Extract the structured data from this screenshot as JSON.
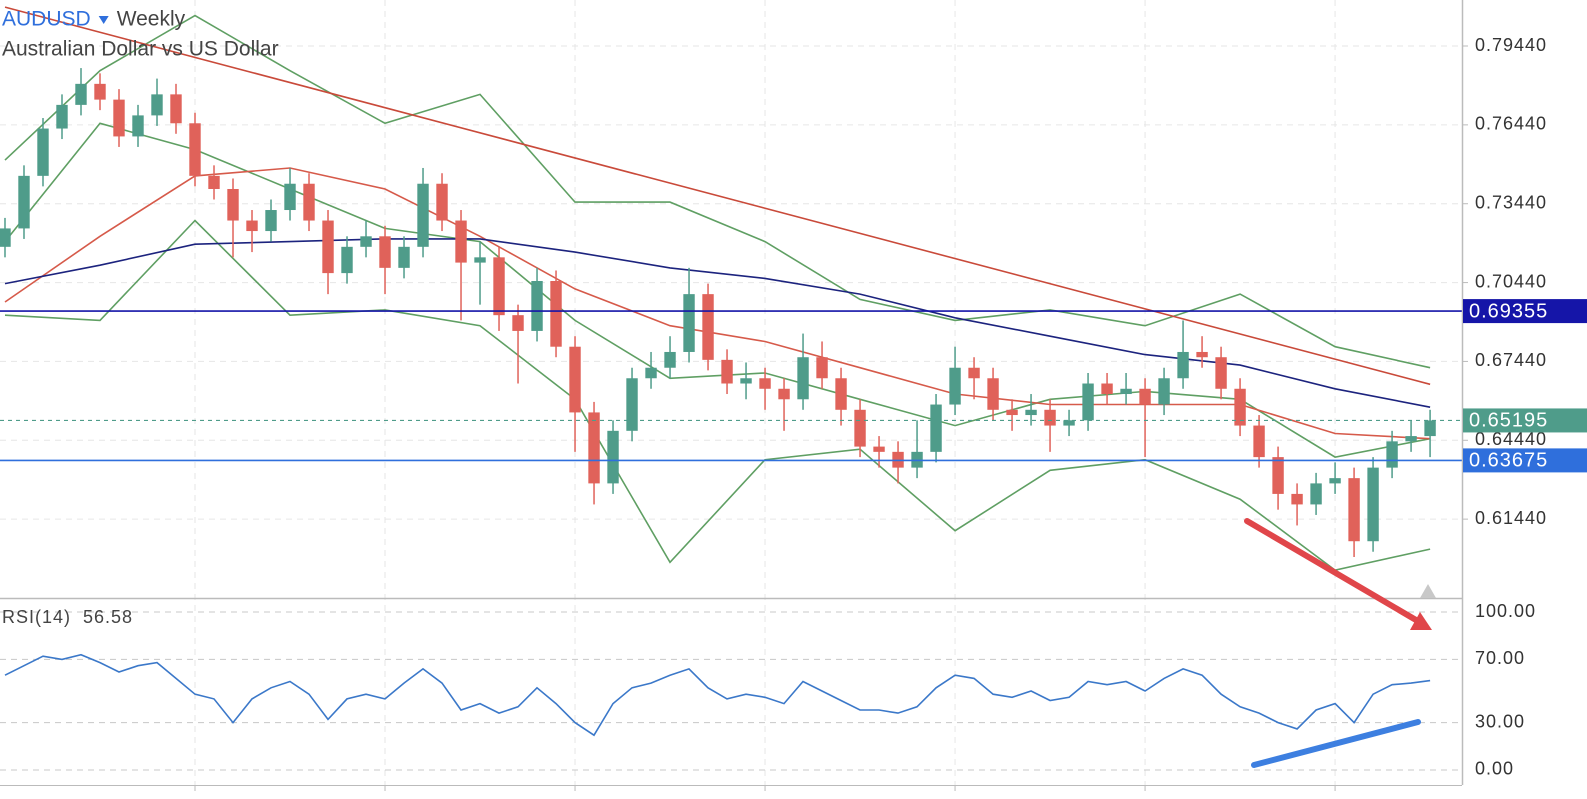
{
  "chart_data": {
    "type": "candlestick",
    "title": "AUDUSD",
    "interval": "Weekly",
    "subtitle": "Australian Dollar vs US Dollar",
    "xlim": [
      -0.263,
      76.68
    ],
    "xticks": [
      10,
      20,
      30,
      40,
      50,
      60,
      70
    ],
    "ylim": [
      0.5844,
      0.8119
    ],
    "yticks": [
      {
        "value": 0.7944,
        "label": "0.79440"
      },
      {
        "value": 0.7644,
        "label": "0.76440"
      },
      {
        "value": 0.7344,
        "label": "0.73440"
      },
      {
        "value": 0.7044,
        "label": "0.70440"
      },
      {
        "value": 0.6744,
        "label": "0.67440"
      },
      {
        "value": 0.6444,
        "label": "0.64440"
      },
      {
        "value": 0.6144,
        "label": "0.61440"
      }
    ],
    "grid": true,
    "up_color": "#4f9c8a",
    "down_color": "#e0625a",
    "candles": [
      [
        0.718,
        0.729,
        0.714,
        0.725
      ],
      [
        0.725,
        0.749,
        0.721,
        0.745
      ],
      [
        0.745,
        0.767,
        0.741,
        0.763
      ],
      [
        0.763,
        0.776,
        0.759,
        0.772
      ],
      [
        0.772,
        0.786,
        0.768,
        0.78
      ],
      [
        0.78,
        0.784,
        0.77,
        0.774
      ],
      [
        0.774,
        0.778,
        0.756,
        0.76
      ],
      [
        0.76,
        0.772,
        0.756,
        0.768
      ],
      [
        0.768,
        0.782,
        0.764,
        0.776
      ],
      [
        0.776,
        0.78,
        0.761,
        0.765
      ],
      [
        0.765,
        0.769,
        0.741,
        0.745
      ],
      [
        0.745,
        0.749,
        0.736,
        0.74
      ],
      [
        0.74,
        0.744,
        0.714,
        0.728
      ],
      [
        0.728,
        0.732,
        0.716,
        0.724
      ],
      [
        0.724,
        0.736,
        0.72,
        0.732
      ],
      [
        0.732,
        0.748,
        0.728,
        0.742
      ],
      [
        0.742,
        0.746,
        0.724,
        0.728
      ],
      [
        0.728,
        0.732,
        0.7,
        0.708
      ],
      [
        0.708,
        0.722,
        0.704,
        0.718
      ],
      [
        0.718,
        0.728,
        0.714,
        0.722
      ],
      [
        0.722,
        0.726,
        0.7,
        0.71
      ],
      [
        0.71,
        0.722,
        0.706,
        0.718
      ],
      [
        0.718,
        0.748,
        0.714,
        0.742
      ],
      [
        0.742,
        0.746,
        0.724,
        0.728
      ],
      [
        0.728,
        0.732,
        0.69,
        0.712
      ],
      [
        0.712,
        0.72,
        0.696,
        0.714
      ],
      [
        0.714,
        0.718,
        0.686,
        0.692
      ],
      [
        0.692,
        0.696,
        0.666,
        0.686
      ],
      [
        0.686,
        0.71,
        0.682,
        0.705
      ],
      [
        0.705,
        0.709,
        0.676,
        0.68
      ],
      [
        0.68,
        0.684,
        0.64,
        0.655
      ],
      [
        0.655,
        0.659,
        0.62,
        0.628
      ],
      [
        0.628,
        0.652,
        0.624,
        0.648
      ],
      [
        0.648,
        0.672,
        0.644,
        0.668
      ],
      [
        0.668,
        0.678,
        0.664,
        0.672
      ],
      [
        0.672,
        0.684,
        0.668,
        0.678
      ],
      [
        0.678,
        0.71,
        0.674,
        0.7
      ],
      [
        0.7,
        0.704,
        0.671,
        0.675
      ],
      [
        0.675,
        0.679,
        0.662,
        0.666
      ],
      [
        0.666,
        0.674,
        0.66,
        0.668
      ],
      [
        0.668,
        0.672,
        0.656,
        0.664
      ],
      [
        0.664,
        0.668,
        0.648,
        0.66
      ],
      [
        0.66,
        0.685,
        0.656,
        0.676
      ],
      [
        0.676,
        0.682,
        0.664,
        0.668
      ],
      [
        0.668,
        0.672,
        0.65,
        0.656
      ],
      [
        0.656,
        0.66,
        0.638,
        0.642
      ],
      [
        0.642,
        0.646,
        0.634,
        0.64
      ],
      [
        0.64,
        0.644,
        0.628,
        0.634
      ],
      [
        0.634,
        0.652,
        0.63,
        0.64
      ],
      [
        0.64,
        0.662,
        0.636,
        0.658
      ],
      [
        0.658,
        0.68,
        0.654,
        0.672
      ],
      [
        0.672,
        0.676,
        0.66,
        0.668
      ],
      [
        0.668,
        0.672,
        0.652,
        0.656
      ],
      [
        0.656,
        0.66,
        0.648,
        0.654
      ],
      [
        0.654,
        0.662,
        0.65,
        0.656
      ],
      [
        0.656,
        0.66,
        0.64,
        0.65
      ],
      [
        0.65,
        0.656,
        0.646,
        0.652
      ],
      [
        0.652,
        0.67,
        0.648,
        0.666
      ],
      [
        0.666,
        0.67,
        0.658,
        0.662
      ],
      [
        0.662,
        0.67,
        0.658,
        0.664
      ],
      [
        0.664,
        0.668,
        0.638,
        0.658
      ],
      [
        0.658,
        0.672,
        0.654,
        0.668
      ],
      [
        0.668,
        0.69,
        0.664,
        0.678
      ],
      [
        0.678,
        0.684,
        0.672,
        0.676
      ],
      [
        0.676,
        0.68,
        0.66,
        0.664
      ],
      [
        0.664,
        0.668,
        0.646,
        0.65
      ],
      [
        0.65,
        0.654,
        0.634,
        0.638
      ],
      [
        0.638,
        0.642,
        0.618,
        0.624
      ],
      [
        0.624,
        0.628,
        0.612,
        0.62
      ],
      [
        0.62,
        0.632,
        0.616,
        0.628
      ],
      [
        0.628,
        0.636,
        0.624,
        0.63
      ],
      [
        0.63,
        0.634,
        0.6,
        0.606
      ],
      [
        0.606,
        0.638,
        0.602,
        0.634
      ],
      [
        0.634,
        0.648,
        0.63,
        0.644
      ],
      [
        0.644,
        0.652,
        0.64,
        0.646
      ],
      [
        0.646,
        0.656,
        0.638,
        0.65195
      ]
    ],
    "overlay_x": [
      0,
      5,
      10,
      15,
      20,
      25,
      30,
      35,
      40,
      45,
      50,
      55,
      60,
      65,
      70,
      75
    ],
    "overlays": [
      {
        "color": "#5f9f63",
        "values": [
          0.751,
          0.785,
          0.806,
          0.785,
          0.765,
          0.776,
          0.735,
          0.735,
          0.72,
          0.698,
          0.69,
          0.694,
          0.688,
          0.7,
          0.68,
          0.672
        ]
      },
      {
        "color": "#5f9f63",
        "values": [
          0.72,
          0.765,
          0.755,
          0.74,
          0.725,
          0.72,
          0.69,
          0.668,
          0.67,
          0.66,
          0.65,
          0.66,
          0.663,
          0.66,
          0.638,
          0.645
        ]
      },
      {
        "color": "#5f9f63",
        "values": [
          0.692,
          0.69,
          0.728,
          0.692,
          0.694,
          0.688,
          0.66,
          0.598,
          0.637,
          0.641,
          0.61,
          0.633,
          0.637,
          0.622,
          0.595,
          0.603
        ]
      },
      {
        "color": "#d65a4a",
        "values": [
          0.697,
          0.722,
          0.745,
          0.748,
          0.74,
          0.722,
          0.702,
          0.688,
          0.682,
          0.672,
          0.662,
          0.658,
          0.658,
          0.658,
          0.647,
          0.645
        ]
      },
      {
        "color": "#1c237e",
        "values": [
          0.704,
          0.711,
          0.719,
          0.72,
          0.721,
          0.721,
          0.716,
          0.71,
          0.706,
          0.7,
          0.691,
          0.684,
          0.677,
          0.673,
          0.664,
          0.657
        ]
      }
    ],
    "trendline": {
      "color": "#c94a3a",
      "x": [
        0,
        75
      ],
      "values": [
        0.8092,
        0.6657
      ]
    },
    "levels": [
      {
        "value": 0.69355,
        "color": "#1515a8",
        "style": "solid"
      },
      {
        "value": 0.65195,
        "color": "#4f9c8a",
        "style": "dashed"
      },
      {
        "value": 0.63675,
        "color": "#2f6fdc",
        "style": "solid"
      }
    ],
    "rsi": {
      "label": "RSI(14)",
      "value": 56.58,
      "color": "#3b78c9",
      "ylim": [
        -9.5,
        107.6
      ],
      "yticks": [
        {
          "value": 100,
          "label": "100.00"
        },
        {
          "value": 70,
          "label": "70.00"
        },
        {
          "value": 30,
          "label": "30.00"
        },
        {
          "value": 0,
          "label": "0.00"
        }
      ],
      "values": [
        60,
        66,
        72,
        70,
        73,
        68,
        62,
        66,
        68,
        58,
        48,
        45,
        30,
        45,
        52,
        56,
        48,
        32,
        45,
        48,
        45,
        55,
        64,
        55,
        38,
        42,
        36,
        40,
        52,
        42,
        30,
        22,
        42,
        52,
        55,
        60,
        64,
        52,
        45,
        48,
        46,
        42,
        56,
        50,
        44,
        38,
        38,
        36,
        40,
        52,
        60,
        58,
        48,
        46,
        50,
        44,
        46,
        56,
        54,
        56,
        50,
        58,
        64,
        60,
        48,
        40,
        36,
        30,
        26,
        38,
        42,
        30,
        48,
        54,
        55,
        56.58
      ]
    }
  }
}
